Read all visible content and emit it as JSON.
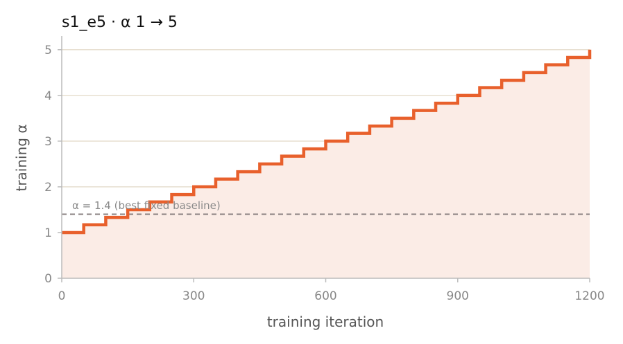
{
  "chart_data": {
    "type": "line",
    "title": "s1_e5   ·   α 1 → 5",
    "xlabel": "training iteration",
    "ylabel": "training α",
    "xlim": [
      0,
      1200
    ],
    "ylim": [
      0,
      5.3
    ],
    "x_ticks": [
      0,
      300,
      600,
      900,
      1200
    ],
    "y_ticks": [
      0,
      1,
      2,
      3,
      4,
      5
    ],
    "grid": "horizontal",
    "series": [
      {
        "step": "post",
        "fill": true,
        "x": [
          0,
          50,
          100,
          150,
          200,
          250,
          300,
          350,
          400,
          450,
          500,
          550,
          600,
          650,
          700,
          750,
          800,
          850,
          900,
          950,
          1000,
          1050,
          1100,
          1150,
          1200
        ],
        "y": [
          1.0,
          1.17,
          1.33,
          1.5,
          1.67,
          1.83,
          2.0,
          2.17,
          2.33,
          2.5,
          2.67,
          2.83,
          3.0,
          3.17,
          3.33,
          3.5,
          3.67,
          3.83,
          4.0,
          4.17,
          4.33,
          4.5,
          4.67,
          4.83,
          5.0
        ]
      }
    ],
    "reference_line": {
      "y": 1.4,
      "label": "α = 1.4 (best fixed baseline)"
    },
    "colors": {
      "line": "#e8602c",
      "fill": "#fbece6",
      "grid": "#e4dccb",
      "baseline": "#8a8080",
      "axis": "#bbbbbb"
    }
  }
}
